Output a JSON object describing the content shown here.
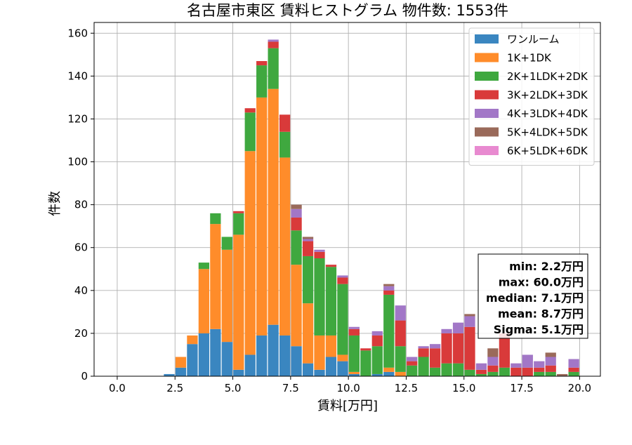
{
  "chart_data": {
    "type": "bar",
    "stacked": true,
    "title": "名古屋市東区 賃料ヒストグラム 物件数: 1553件",
    "xlabel": "賃料[万円]",
    "ylabel": "件数",
    "xlim": [
      -1.0,
      20.9
    ],
    "ylim": [
      0,
      165
    ],
    "xticks": [
      0.0,
      2.5,
      5.0,
      7.5,
      10.0,
      12.5,
      15.0,
      17.5,
      20.0
    ],
    "xtick_labels": [
      "0.0",
      "2.5",
      "5.0",
      "7.5",
      "10.0",
      "12.5",
      "15.0",
      "17.5",
      "20.0"
    ],
    "yticks": [
      0,
      20,
      40,
      60,
      80,
      100,
      120,
      140,
      160
    ],
    "ytick_labels": [
      "0",
      "20",
      "40",
      "60",
      "80",
      "100",
      "120",
      "140",
      "160"
    ],
    "grid": true,
    "legend_position": "top-right",
    "bin_width": 0.5,
    "bin_starts": [
      0.0,
      0.5,
      1.0,
      1.5,
      2.0,
      2.5,
      3.0,
      3.5,
      4.0,
      4.5,
      5.0,
      5.5,
      6.0,
      6.5,
      7.0,
      7.5,
      8.0,
      8.5,
      9.0,
      9.5,
      10.0,
      10.5,
      11.0,
      11.5,
      12.0,
      12.5,
      13.0,
      13.5,
      14.0,
      14.5,
      15.0,
      15.5,
      16.0,
      16.5,
      17.0,
      17.5,
      18.0,
      18.5,
      19.0,
      19.5
    ],
    "series": [
      {
        "name": "ワンルーム",
        "color": "#3a86c0",
        "values": [
          0,
          0,
          0,
          0,
          1,
          4,
          15,
          20,
          22,
          16,
          3,
          10,
          19,
          24,
          19,
          14,
          6,
          3,
          9,
          7,
          1,
          0,
          1,
          2,
          0,
          0,
          0,
          0,
          0,
          0,
          0,
          0,
          0,
          0,
          0,
          0,
          0,
          0,
          0,
          0
        ]
      },
      {
        "name": "1K+1DK",
        "color": "#ff8c2a",
        "values": [
          0,
          0,
          0,
          0,
          0,
          5,
          4,
          30,
          49,
          43,
          63,
          95,
          111,
          110,
          83,
          38,
          28,
          16,
          10,
          3,
          1,
          0,
          0,
          2,
          2,
          0,
          0,
          0,
          0,
          0,
          0,
          0,
          0,
          0,
          0,
          0,
          0,
          0,
          0,
          0
        ]
      },
      {
        "name": "2K+1LDK+2DK",
        "color": "#3fa83f",
        "values": [
          0,
          0,
          0,
          0,
          0,
          0,
          0,
          3,
          5,
          6,
          10,
          18,
          15,
          19,
          12,
          16,
          22,
          36,
          32,
          33,
          17,
          12,
          13,
          34,
          12,
          5,
          9,
          4,
          6,
          6,
          3,
          1,
          2,
          4,
          0,
          0,
          2,
          2,
          0,
          2
        ]
      },
      {
        "name": "3K+2LDK+3DK",
        "color": "#d93a3a",
        "values": [
          0,
          0,
          0,
          0,
          0,
          0,
          0,
          0,
          0,
          0,
          1,
          2,
          2,
          3,
          8,
          6,
          7,
          3,
          1,
          3,
          3,
          1,
          5,
          2,
          12,
          2,
          4,
          9,
          14,
          14,
          20,
          2,
          3,
          16,
          4,
          4,
          2,
          3,
          0,
          2
        ]
      },
      {
        "name": "4K+3LDK+4DK",
        "color": "#a277c7",
        "values": [
          0,
          0,
          0,
          0,
          0,
          0,
          0,
          0,
          0,
          0,
          0,
          0,
          0,
          1,
          0,
          4,
          1,
          1,
          0,
          1,
          1,
          0,
          2,
          2,
          7,
          2,
          1,
          2,
          2,
          5,
          5,
          3,
          4,
          0,
          2,
          6,
          3,
          4,
          0,
          4
        ]
      },
      {
        "name": "5K+4LDK+5DK",
        "color": "#9a6a5a",
        "values": [
          0,
          0,
          0,
          0,
          0,
          0,
          0,
          0,
          0,
          0,
          0,
          0,
          0,
          0,
          0,
          2,
          1,
          0,
          0,
          0,
          0,
          0,
          0,
          1,
          0,
          0,
          0,
          0,
          0,
          0,
          1,
          0,
          4,
          0,
          0,
          0,
          0,
          2,
          1,
          0
        ]
      },
      {
        "name": "6K+5LDK+6DK",
        "color": "#e88ad0",
        "values": [
          0,
          0,
          0,
          0,
          0,
          0,
          0,
          0,
          0,
          0,
          0,
          0,
          0,
          0,
          0,
          0,
          0,
          0,
          0,
          0,
          0,
          0,
          0,
          0,
          0,
          0,
          0,
          0,
          0,
          0,
          0,
          0,
          0,
          0,
          0,
          0,
          0,
          0,
          0,
          0
        ]
      }
    ],
    "stats": [
      {
        "label": "min: 2.2万円"
      },
      {
        "label": "max: 60.0万円"
      },
      {
        "label": "median: 7.1万円"
      },
      {
        "label": "mean: 8.7万円"
      },
      {
        "label": "Sigma: 5.1万円"
      }
    ]
  }
}
